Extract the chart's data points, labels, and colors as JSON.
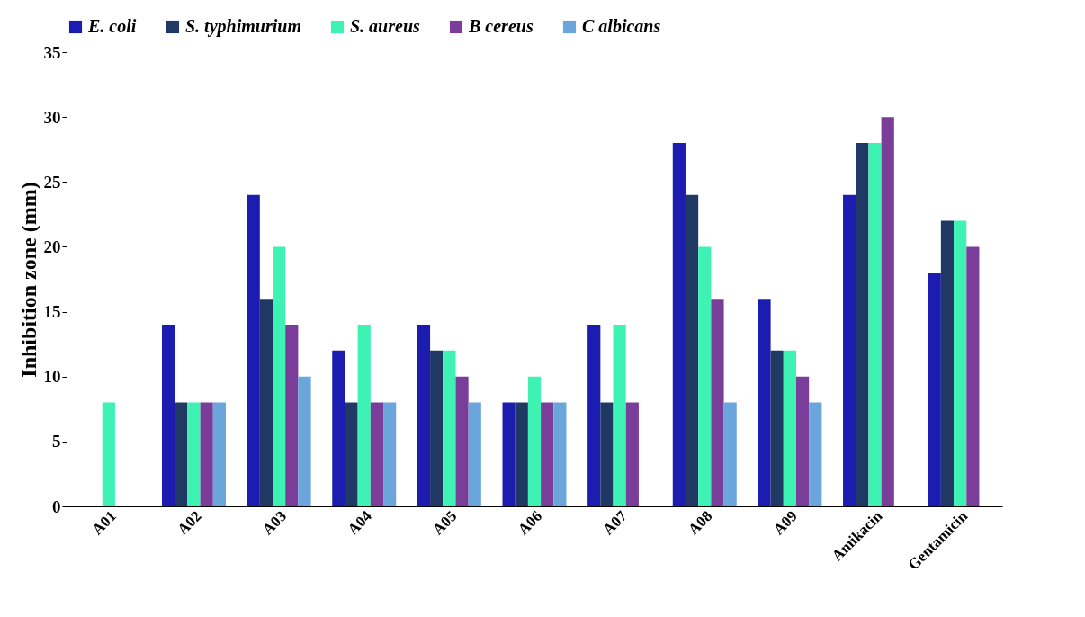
{
  "chart_data": {
    "type": "bar",
    "ylabel": "Inhibition zone (mm)",
    "categories": [
      "A01",
      "A02",
      "A03",
      "A04",
      "A05",
      "A06",
      "A07",
      "A08",
      "A09",
      "Amikacin",
      "Gentamicin"
    ],
    "series": [
      {
        "name": "E. coli",
        "color": "#1c1cb0",
        "values": [
          0,
          14,
          24,
          12,
          14,
          8,
          14,
          28,
          16,
          24,
          18
        ]
      },
      {
        "name": "S. typhimurium",
        "color": "#1f3864",
        "values": [
          0,
          8,
          16,
          8,
          12,
          8,
          8,
          24,
          12,
          28,
          22
        ]
      },
      {
        "name": "S. aureus",
        "color": "#3ef2b4",
        "values": [
          8,
          8,
          20,
          14,
          12,
          10,
          14,
          20,
          12,
          28,
          22
        ]
      },
      {
        "name": "B cereus",
        "color": "#7a3d99",
        "values": [
          0,
          8,
          14,
          8,
          10,
          8,
          8,
          16,
          10,
          30,
          20
        ]
      },
      {
        "name": "C albicans",
        "color": "#6aa6dc",
        "values": [
          0,
          8,
          10,
          8,
          8,
          8,
          0,
          8,
          8,
          0,
          0
        ]
      }
    ],
    "ylim": [
      0,
      35
    ],
    "yticks": [
      0,
      5,
      10,
      15,
      20,
      25,
      30,
      35
    ],
    "grid": false,
    "legend": "top"
  }
}
